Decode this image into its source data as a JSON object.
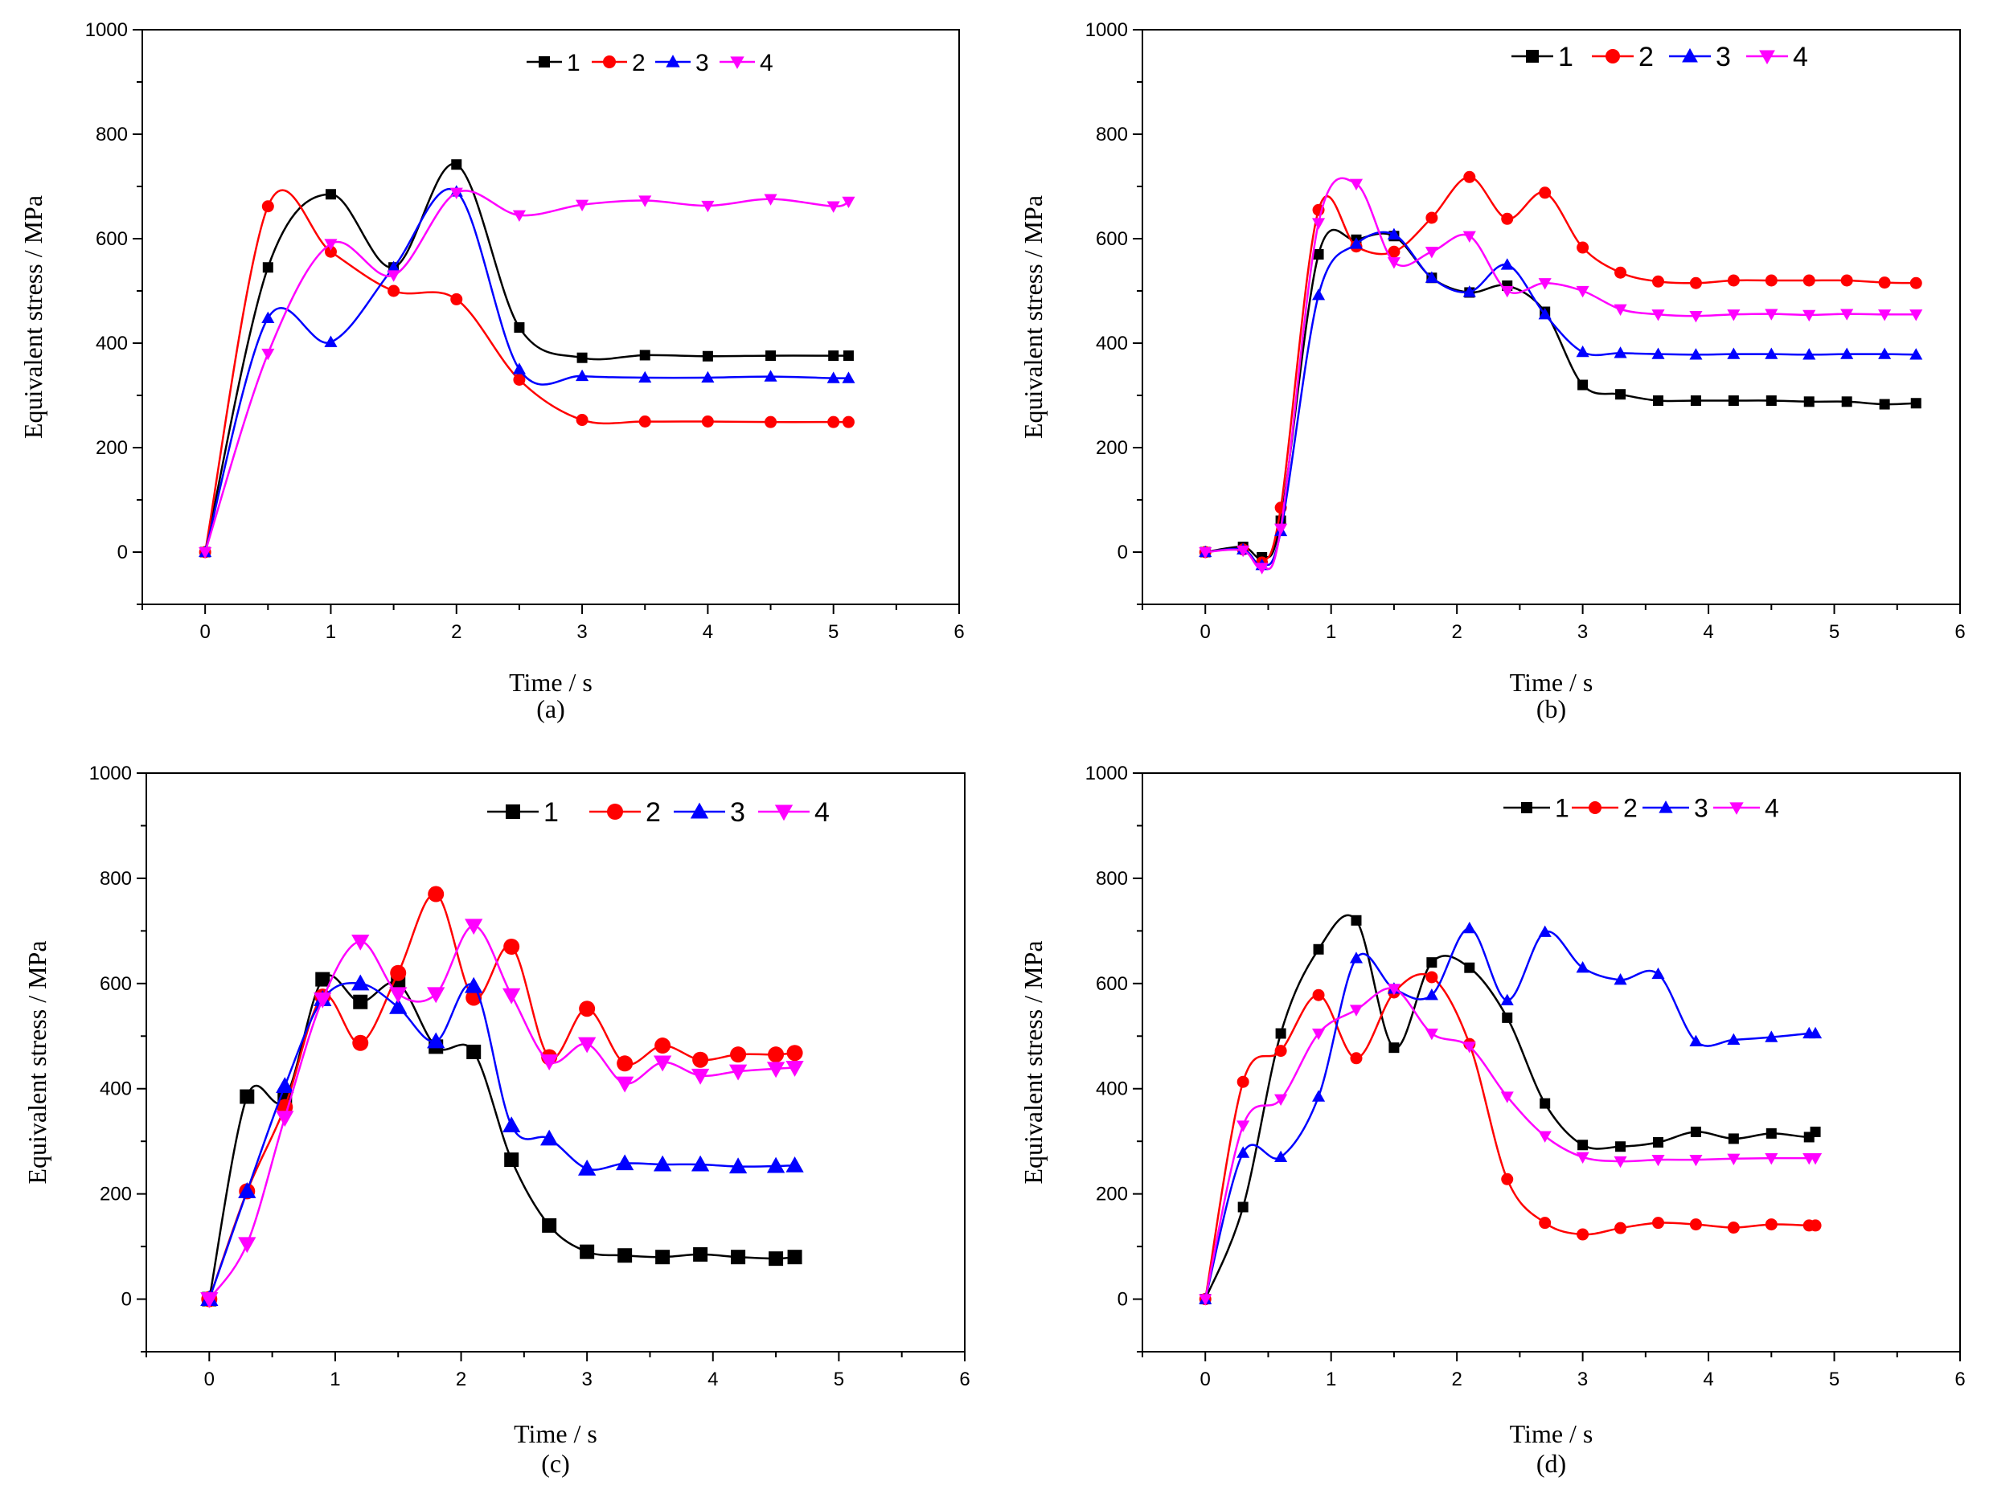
{
  "figure": {
    "x_label": "Time / s",
    "y_label": "Equivalent stress / MPa",
    "colors": {
      "1": "#000000",
      "2": "#ff0000",
      "3": "#0000ff",
      "4": "#ff00ff"
    }
  },
  "chart_data": [
    {
      "type": "line",
      "panel_label": "(a)",
      "title": "",
      "xlabel": "Time / s",
      "ylabel": "Equivalent stress / MPa",
      "xlim": [
        -0.5,
        6
      ],
      "ylim": [
        -100,
        1000
      ],
      "x_ticks": [
        0,
        1,
        2,
        3,
        4,
        5,
        6
      ],
      "y_ticks": [
        0,
        200,
        400,
        600,
        800,
        1000
      ],
      "legend": "top-right",
      "series": [
        {
          "name": "1",
          "color": "#000000",
          "marker": "square",
          "x": [
            0,
            0.5,
            1,
            1.5,
            2,
            2.5,
            3,
            3.5,
            4,
            4.5,
            5,
            5.12
          ],
          "values": [
            0,
            545,
            685,
            545,
            742,
            430,
            372,
            377,
            375,
            376,
            376,
            376
          ]
        },
        {
          "name": "2",
          "color": "#ff0000",
          "marker": "circle",
          "x": [
            0,
            0.5,
            1,
            1.5,
            2,
            2.5,
            3,
            3.5,
            4,
            4.5,
            5,
            5.12
          ],
          "values": [
            0,
            662,
            575,
            500,
            484,
            330,
            253,
            250,
            250,
            249,
            249,
            249
          ]
        },
        {
          "name": "3",
          "color": "#0000ff",
          "marker": "triangle-up",
          "x": [
            0,
            0.5,
            1,
            1.5,
            2,
            2.5,
            3,
            3.5,
            4,
            4.5,
            5,
            5.12
          ],
          "values": [
            0,
            448,
            402,
            545,
            690,
            350,
            337,
            334,
            334,
            336,
            333,
            333
          ]
        },
        {
          "name": "4",
          "color": "#ff00ff",
          "marker": "triangle-down",
          "x": [
            0,
            0.5,
            1,
            1.5,
            2,
            2.5,
            3,
            3.5,
            4,
            4.5,
            5,
            5.12
          ],
          "values": [
            0,
            380,
            590,
            530,
            688,
            645,
            665,
            673,
            663,
            676,
            662,
            671
          ]
        }
      ]
    },
    {
      "type": "line",
      "panel_label": "(b)",
      "title": "",
      "xlabel": "Time / s",
      "ylabel": "Equivalent stress / MPa",
      "xlim": [
        -0.5,
        6
      ],
      "ylim": [
        -100,
        1000
      ],
      "x_ticks": [
        0,
        1,
        2,
        3,
        4,
        5,
        6
      ],
      "y_ticks": [
        0,
        200,
        400,
        600,
        800,
        1000
      ],
      "legend": "top-right",
      "series": [
        {
          "name": "1",
          "color": "#000000",
          "marker": "square",
          "x": [
            0,
            0.3,
            0.45,
            0.6,
            0.9,
            1.2,
            1.5,
            1.8,
            2.1,
            2.4,
            2.7,
            3,
            3.3,
            3.6,
            3.9,
            4.2,
            4.5,
            4.8,
            5.1,
            5.4,
            5.65
          ],
          "values": [
            0,
            10,
            -10,
            60,
            570,
            598,
            605,
            525,
            497,
            510,
            460,
            320,
            302,
            290,
            290,
            290,
            290,
            288,
            288,
            283,
            285
          ]
        },
        {
          "name": "2",
          "color": "#ff0000",
          "marker": "circle",
          "x": [
            0,
            0.3,
            0.45,
            0.6,
            0.9,
            1.2,
            1.5,
            1.8,
            2.1,
            2.4,
            2.7,
            3,
            3.3,
            3.6,
            3.9,
            4.2,
            4.5,
            4.8,
            5.1,
            5.4,
            5.65
          ],
          "values": [
            0,
            5,
            -20,
            85,
            655,
            585,
            575,
            640,
            718,
            638,
            688,
            583,
            535,
            518,
            515,
            520,
            520,
            520,
            520,
            516,
            515
          ]
        },
        {
          "name": "3",
          "color": "#0000ff",
          "marker": "triangle-up",
          "x": [
            0,
            0.3,
            0.45,
            0.6,
            0.9,
            1.2,
            1.5,
            1.8,
            2.1,
            2.4,
            2.7,
            3,
            3.3,
            3.6,
            3.9,
            4.2,
            4.5,
            4.8,
            5.1,
            5.4,
            5.65
          ],
          "values": [
            0,
            5,
            -25,
            40,
            492,
            590,
            608,
            525,
            498,
            550,
            455,
            383,
            381,
            379,
            378,
            379,
            379,
            378,
            379,
            379,
            378
          ]
        },
        {
          "name": "4",
          "color": "#ff00ff",
          "marker": "triangle-down",
          "x": [
            0,
            0.3,
            0.45,
            0.6,
            0.9,
            1.2,
            1.5,
            1.8,
            2.1,
            2.4,
            2.7,
            3,
            3.3,
            3.6,
            3.9,
            4.2,
            4.5,
            4.8,
            5.1,
            5.4,
            5.65
          ],
          "values": [
            0,
            3,
            -30,
            45,
            630,
            705,
            555,
            575,
            605,
            500,
            515,
            500,
            465,
            455,
            452,
            455,
            456,
            454,
            456,
            455,
            455
          ]
        }
      ]
    },
    {
      "type": "line",
      "panel_label": "(c)",
      "title": "",
      "xlabel": "Time / s",
      "ylabel": "Equivalent stress / MPa",
      "xlim": [
        -0.5,
        6
      ],
      "ylim": [
        -100,
        1000
      ],
      "x_ticks": [
        0,
        1,
        2,
        3,
        4,
        5,
        6
      ],
      "y_ticks": [
        0,
        200,
        400,
        600,
        800,
        1000
      ],
      "legend": "top-right",
      "series": [
        {
          "name": "1",
          "color": "#000000",
          "marker": "square",
          "x": [
            0,
            0.3,
            0.6,
            0.9,
            1.2,
            1.5,
            1.8,
            2.1,
            2.4,
            2.7,
            3,
            3.3,
            3.6,
            3.9,
            4.2,
            4.5,
            4.65
          ],
          "values": [
            0,
            385,
            380,
            608,
            565,
            600,
            480,
            470,
            265,
            140,
            90,
            83,
            80,
            85,
            80,
            77,
            80
          ]
        },
        {
          "name": "2",
          "color": "#ff0000",
          "marker": "circle",
          "x": [
            0,
            0.3,
            0.6,
            0.9,
            1.2,
            1.5,
            1.8,
            2.1,
            2.4,
            2.7,
            3,
            3.3,
            3.6,
            3.9,
            4.2,
            4.5,
            4.65
          ],
          "values": [
            0,
            205,
            365,
            575,
            487,
            620,
            770,
            573,
            670,
            460,
            552,
            448,
            482,
            455,
            465,
            465,
            468
          ]
        },
        {
          "name": "3",
          "color": "#0000ff",
          "marker": "triangle-up",
          "x": [
            0,
            0.3,
            0.6,
            0.9,
            1.2,
            1.5,
            1.8,
            2.1,
            2.4,
            2.7,
            3,
            3.3,
            3.6,
            3.9,
            4.2,
            4.5,
            4.65
          ],
          "values": [
            0,
            205,
            405,
            570,
            600,
            555,
            490,
            595,
            330,
            305,
            248,
            258,
            256,
            256,
            252,
            253,
            254
          ]
        },
        {
          "name": "4",
          "color": "#ff00ff",
          "marker": "triangle-down",
          "x": [
            0,
            0.3,
            0.6,
            0.9,
            1.2,
            1.5,
            1.8,
            2.1,
            2.4,
            2.7,
            3,
            3.3,
            3.6,
            3.9,
            4.2,
            4.5,
            4.65
          ],
          "values": [
            0,
            105,
            345,
            570,
            680,
            580,
            580,
            710,
            578,
            452,
            485,
            410,
            450,
            425,
            433,
            438,
            440
          ]
        }
      ]
    },
    {
      "type": "line",
      "panel_label": "(d)",
      "title": "",
      "xlabel": "Time / s",
      "ylabel": "Equivalent stress / MPa",
      "xlim": [
        -0.5,
        6
      ],
      "ylim": [
        -100,
        1000
      ],
      "x_ticks": [
        0,
        1,
        2,
        3,
        4,
        5,
        6
      ],
      "y_ticks": [
        0,
        200,
        400,
        600,
        800,
        1000
      ],
      "legend": "top-right",
      "series": [
        {
          "name": "1",
          "color": "#000000",
          "marker": "square",
          "x": [
            0,
            0.3,
            0.6,
            0.9,
            1.2,
            1.5,
            1.8,
            2.1,
            2.4,
            2.7,
            3,
            3.3,
            3.6,
            3.9,
            4.2,
            4.5,
            4.8,
            4.85
          ],
          "values": [
            0,
            175,
            505,
            665,
            720,
            478,
            640,
            630,
            535,
            372,
            293,
            290,
            298,
            318,
            305,
            315,
            308,
            318
          ]
        },
        {
          "name": "2",
          "color": "#ff0000",
          "marker": "circle",
          "x": [
            0,
            0.3,
            0.6,
            0.9,
            1.2,
            1.5,
            1.8,
            2.1,
            2.4,
            2.7,
            3,
            3.3,
            3.6,
            3.9,
            4.2,
            4.5,
            4.8,
            4.85
          ],
          "values": [
            0,
            413,
            472,
            578,
            458,
            583,
            612,
            485,
            228,
            145,
            123,
            135,
            145,
            142,
            136,
            142,
            140,
            140
          ]
        },
        {
          "name": "3",
          "color": "#0000ff",
          "marker": "triangle-up",
          "x": [
            0,
            0.3,
            0.6,
            0.9,
            1.2,
            1.5,
            1.8,
            2.1,
            2.4,
            2.7,
            3,
            3.3,
            3.6,
            3.9,
            4.2,
            4.5,
            4.8,
            4.85
          ],
          "values": [
            0,
            278,
            270,
            385,
            648,
            590,
            578,
            705,
            568,
            698,
            630,
            607,
            618,
            490,
            493,
            498,
            505,
            505
          ]
        },
        {
          "name": "4",
          "color": "#ff00ff",
          "marker": "triangle-down",
          "x": [
            0,
            0.3,
            0.6,
            0.9,
            1.2,
            1.5,
            1.8,
            2.1,
            2.4,
            2.7,
            3,
            3.3,
            3.6,
            3.9,
            4.2,
            4.5,
            4.8,
            4.85
          ],
          "values": [
            0,
            330,
            380,
            505,
            550,
            590,
            505,
            480,
            385,
            310,
            270,
            262,
            265,
            265,
            267,
            268,
            268,
            268
          ]
        }
      ]
    }
  ]
}
